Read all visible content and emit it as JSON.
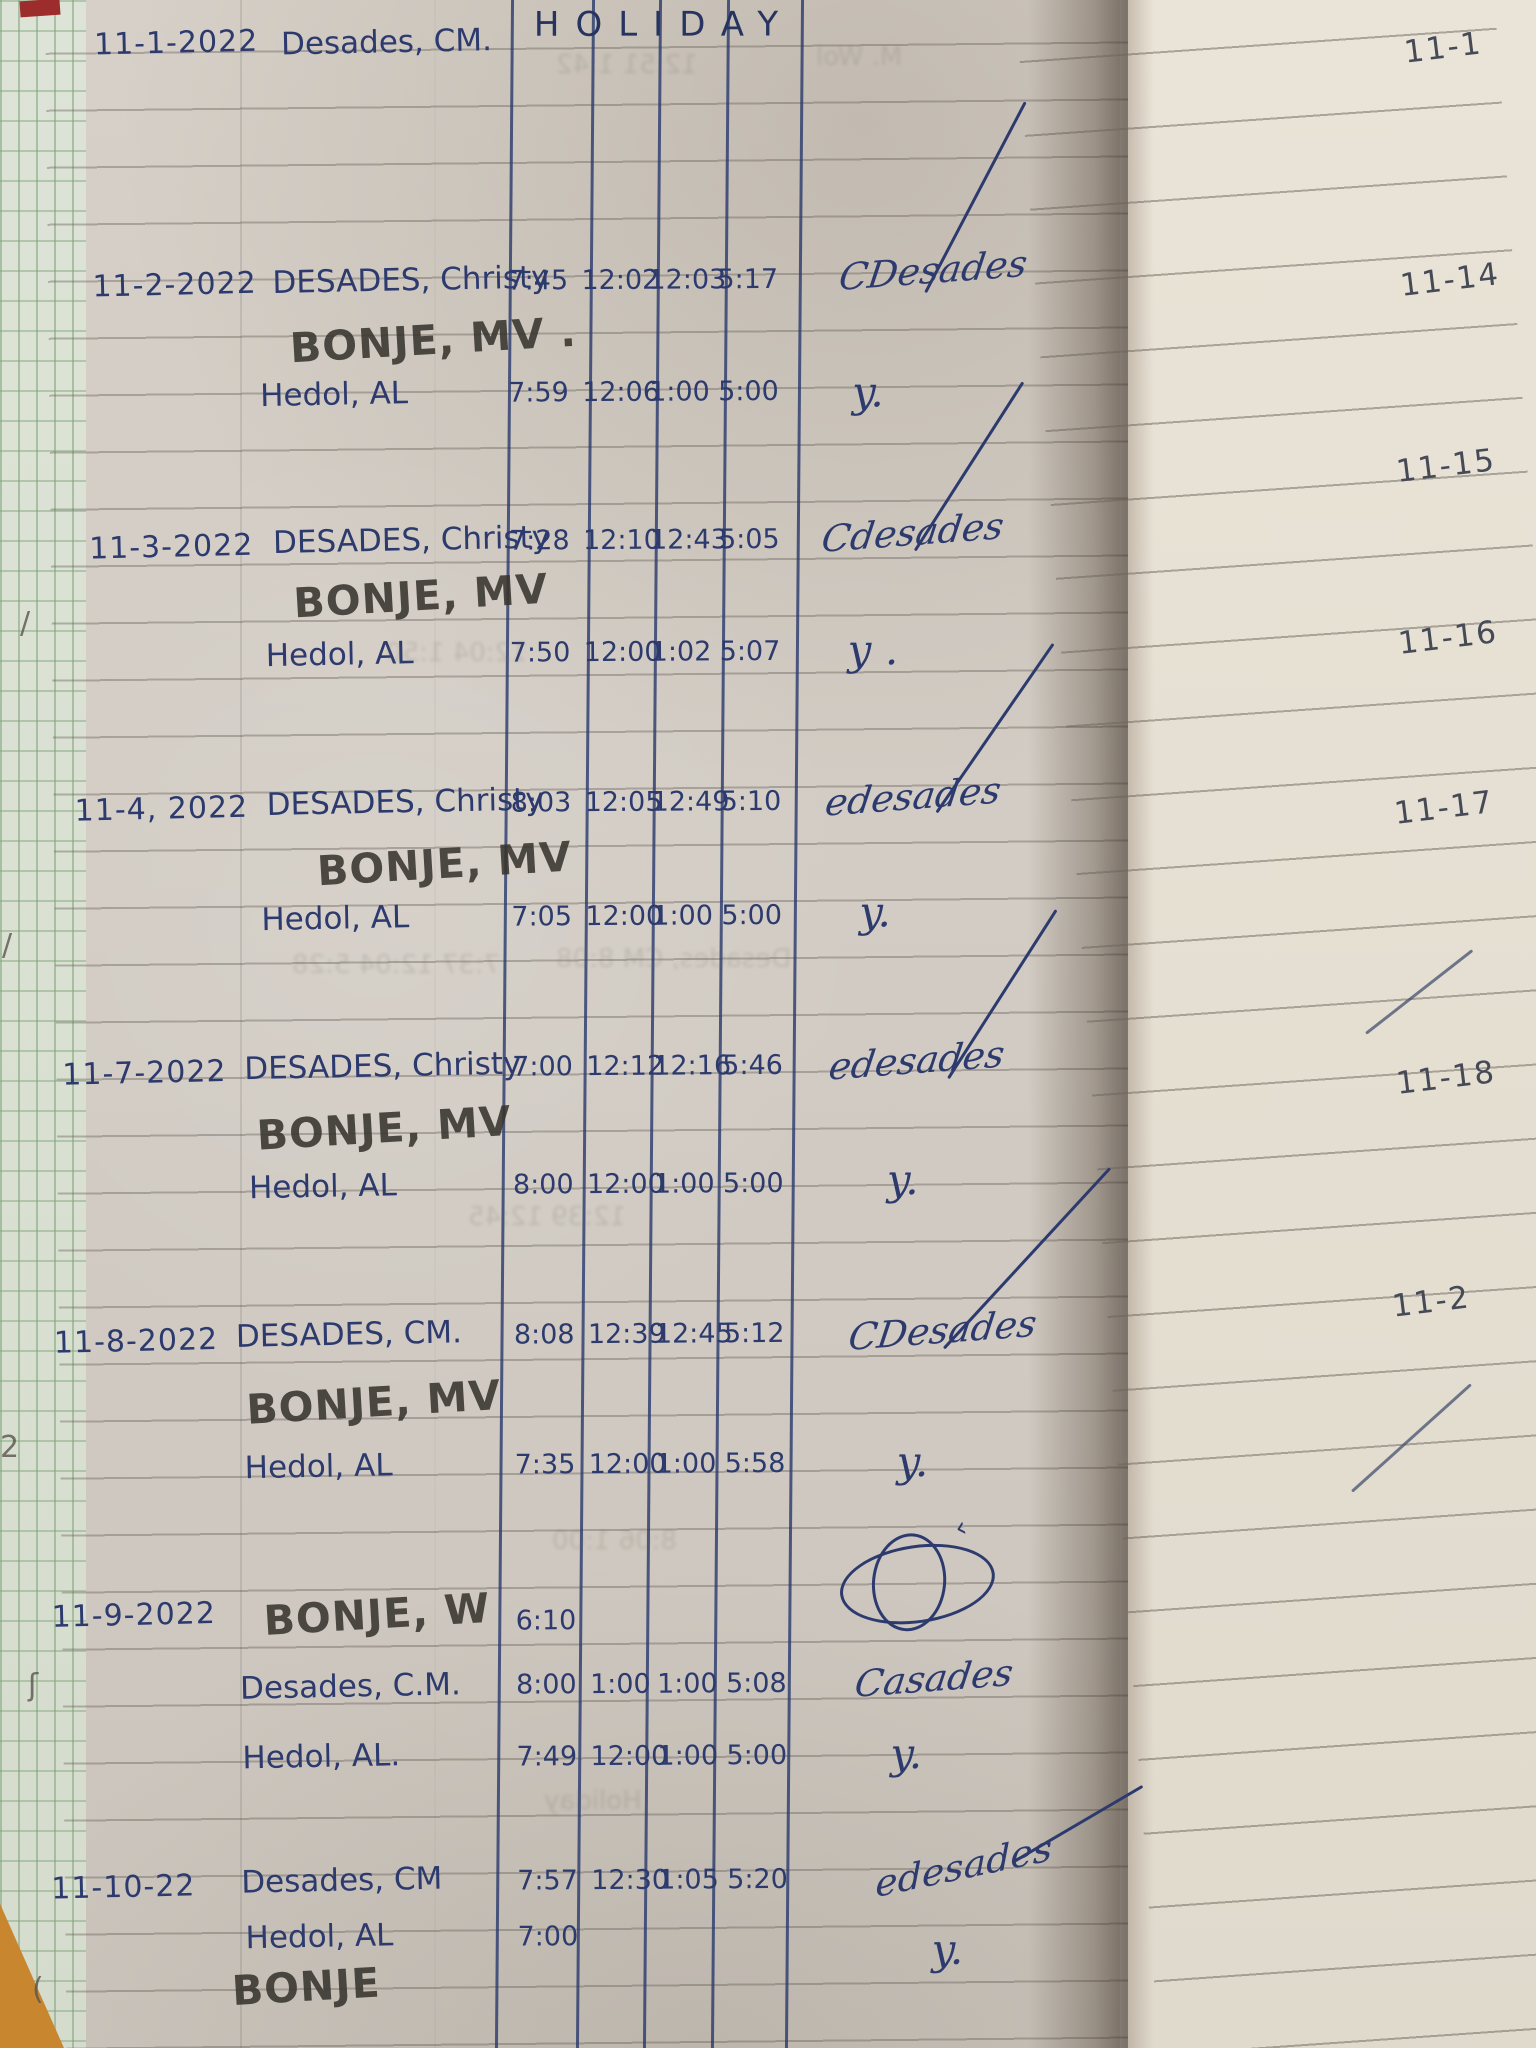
{
  "document": {
    "kind": "Handwritten attendance logbook page (photo)",
    "left_page_dates_range": "11-1-2022 to 11-10-22",
    "holiday_note": "HOLIDAY"
  },
  "colors": {
    "ink_blue": "#2c3a6e",
    "ink_dark": "#38352f",
    "pencil_gray": "#464a56",
    "paper_left": "#d3cdc5",
    "paper_right": "#e6e0d4",
    "edge_green": "#7da379",
    "cover_red": "#9d2c2c",
    "table_orange": "#c8862f"
  },
  "log_rows": [
    {
      "date": "11-1-2022",
      "entries": [
        {
          "name": "Desades, CM.",
          "ink": "blue",
          "times": [],
          "note": "HOLIDAY"
        }
      ]
    },
    {
      "date": "11-2-2022",
      "entries": [
        {
          "name": "DESADES, Christy",
          "ink": "blue",
          "times": [
            "7:45",
            "12:02",
            "12:03",
            "5:17"
          ],
          "signature": "CDesades"
        },
        {
          "name": "BONJE, MV .",
          "ink": "dark",
          "times": []
        },
        {
          "name": "Hedol, AL",
          "ink": "blue",
          "times": [
            "7:59",
            "12:06",
            "1:00",
            "5:00"
          ],
          "signature": "y."
        }
      ]
    },
    {
      "date": "11-3-2022",
      "entries": [
        {
          "name": "DESADES, Christy",
          "ink": "blue",
          "times": [
            "7:28",
            "12:10",
            "12:43",
            "5:05"
          ],
          "signature": "Cdesades"
        },
        {
          "name": "BONJE, MV",
          "ink": "dark",
          "times": []
        },
        {
          "name": "Hedol, AL",
          "ink": "blue",
          "times": [
            "7:50",
            "12:00",
            "1:02",
            "5:07"
          ],
          "signature": "y ."
        }
      ]
    },
    {
      "date": "11-4, 2022",
      "entries": [
        {
          "name": "DESADES, Christy",
          "ink": "blue",
          "times": [
            "8:03",
            "12:05",
            "12:49",
            "5:10"
          ],
          "signature": "edesades"
        },
        {
          "name": "BONJE, MV",
          "ink": "dark",
          "times": []
        },
        {
          "name": "Hedol, AL",
          "ink": "blue",
          "times": [
            "7:05",
            "12:00",
            "1:00",
            "5:00"
          ],
          "signature": "y."
        }
      ]
    },
    {
      "date": "11-7-2022",
      "entries": [
        {
          "name": "DESADES, Christy",
          "ink": "blue",
          "times": [
            "7:00",
            "12:12",
            "12:16",
            "5:46"
          ],
          "signature": "edesades"
        },
        {
          "name": "BONJE, MV",
          "ink": "dark",
          "times": []
        },
        {
          "name": "Hedol, AL",
          "ink": "blue",
          "times": [
            "8:00",
            "12:00",
            "1:00",
            "5:00"
          ],
          "signature": "y."
        }
      ]
    },
    {
      "date": "11-8-2022",
      "entries": [
        {
          "name": "DESADES, CM.",
          "ink": "blue",
          "times": [
            "8:08",
            "12:39",
            "12:45",
            "5:12"
          ],
          "signature": "CDesades"
        },
        {
          "name": "BONJE, MV",
          "ink": "dark",
          "times": []
        },
        {
          "name": "Hedol, AL",
          "ink": "blue",
          "times": [
            "7:35",
            "12:00",
            "1:00",
            "5:58"
          ],
          "signature": "y."
        }
      ]
    },
    {
      "date": "11-9-2022",
      "entries": [
        {
          "name": "BONJE, W",
          "ink": "dark",
          "times": [
            "6:10"
          ],
          "signature_scribble": true
        },
        {
          "name": "Desades, C.M.",
          "ink": "blue",
          "times": [
            "8:00",
            "1:00",
            "1:00",
            "5:08"
          ],
          "signature": "Casades"
        },
        {
          "name": "Hedol, AL.",
          "ink": "blue",
          "times": [
            "7:49",
            "12:00",
            "1:00",
            "5:00"
          ],
          "signature": "y."
        }
      ]
    },
    {
      "date": "11-10-22",
      "entries": [
        {
          "name": "Desades, CM",
          "ink": "blue",
          "times": [
            "7:57",
            "12:30",
            "1:05",
            "5:20"
          ],
          "signature": "edesades"
        },
        {
          "name": "Hedol, AL",
          "ink": "blue",
          "times": [
            "7:00"
          ],
          "signature": "y."
        },
        {
          "name": "BONJE",
          "ink": "dark",
          "times": []
        }
      ]
    }
  ],
  "right_page_dates": [
    "11-1",
    "11-14",
    "11-15",
    "11-16",
    "11-17",
    "11-18",
    "11-2"
  ],
  "margin_marks": [
    "/",
    "/",
    "2",
    "ʃ",
    "("
  ],
  "bleed_marks": [
    "12:51 1:42",
    "M. Wol",
    "12:04 1:50",
    "7:37 12:04 5:28",
    "Desades, CM 8:08",
    "12:39 12:45",
    "8:06 1:00",
    "Holiday"
  ]
}
